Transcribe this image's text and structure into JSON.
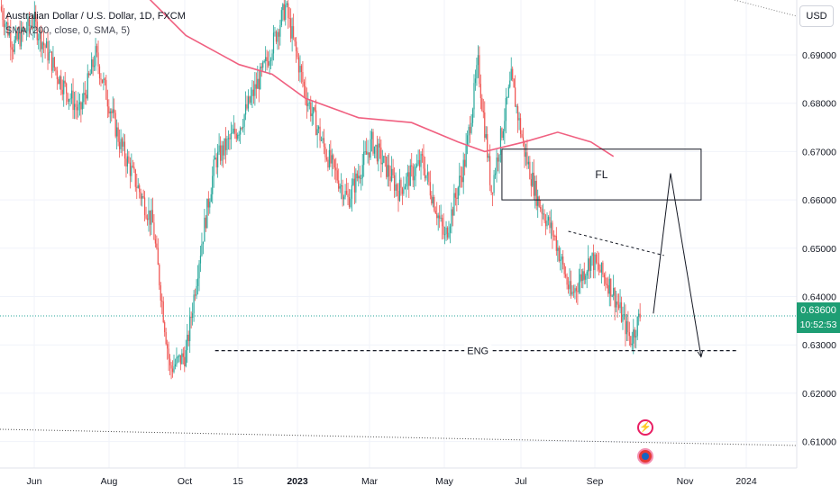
{
  "legend": {
    "symbol_line": "Australian Dollar / U.S. Dollar, 1D, FXCM",
    "indicator_line": "SMA (200, close, 0, SMA, 5)"
  },
  "price_axis": {
    "currency_button": "USD",
    "ticks": [
      "0.69000",
      "0.68000",
      "0.67000",
      "0.66000",
      "0.65000",
      "0.64000",
      "0.63000",
      "0.62000",
      "0.61000"
    ],
    "tick_values": [
      0.69,
      0.68,
      0.67,
      0.66,
      0.65,
      0.64,
      0.63,
      0.62,
      0.61
    ]
  },
  "current_price": {
    "value": "0.63600",
    "countdown": "10:52:53",
    "color": "#1e9e74"
  },
  "time_axis": {
    "labels": [
      "Jun",
      "Aug",
      "Oct",
      "15",
      "2023",
      "Mar",
      "May",
      "Jul",
      "Sep",
      "Nov",
      "2024"
    ]
  },
  "annotations": {
    "zone_label": "FL",
    "level_label": "ENG"
  },
  "colors": {
    "up": "#26a69a",
    "down": "#ef5350",
    "sma": "#f06080",
    "grid": "#f0f3fa"
  },
  "chart_data": {
    "type": "candlestick",
    "title": "Australian Dollar / U.S. Dollar, 1D, FXCM",
    "ylim": [
      0.604,
      0.702
    ],
    "x_labels": [
      "Jun",
      "Aug",
      "Oct",
      "15",
      "2023",
      "Mar",
      "May",
      "Jul",
      "Sep",
      "Nov",
      "2024"
    ],
    "price_path": [
      {
        "t": 0,
        "v": 0.7
      },
      {
        "t": 10,
        "v": 0.692
      },
      {
        "t": 25,
        "v": 0.697
      },
      {
        "t": 45,
        "v": 0.685
      },
      {
        "t": 60,
        "v": 0.678
      },
      {
        "t": 72,
        "v": 0.69
      },
      {
        "t": 90,
        "v": 0.672
      },
      {
        "t": 115,
        "v": 0.655
      },
      {
        "t": 128,
        "v": 0.625
      },
      {
        "t": 140,
        "v": 0.628
      },
      {
        "t": 150,
        "v": 0.648
      },
      {
        "t": 162,
        "v": 0.668
      },
      {
        "t": 180,
        "v": 0.675
      },
      {
        "t": 200,
        "v": 0.688
      },
      {
        "t": 215,
        "v": 0.7
      },
      {
        "t": 230,
        "v": 0.682
      },
      {
        "t": 245,
        "v": 0.67
      },
      {
        "t": 262,
        "v": 0.66
      },
      {
        "t": 280,
        "v": 0.672
      },
      {
        "t": 300,
        "v": 0.662
      },
      {
        "t": 318,
        "v": 0.668
      },
      {
        "t": 335,
        "v": 0.652
      },
      {
        "t": 350,
        "v": 0.668
      },
      {
        "t": 360,
        "v": 0.688
      },
      {
        "t": 370,
        "v": 0.662
      },
      {
        "t": 385,
        "v": 0.685
      },
      {
        "t": 395,
        "v": 0.67
      },
      {
        "t": 405,
        "v": 0.66
      },
      {
        "t": 418,
        "v": 0.652
      },
      {
        "t": 430,
        "v": 0.64
      },
      {
        "t": 445,
        "v": 0.648
      },
      {
        "t": 460,
        "v": 0.642
      },
      {
        "t": 475,
        "v": 0.631
      },
      {
        "t": 482,
        "v": 0.636
      }
    ],
    "sma_200": [
      {
        "t": 100,
        "v": 0.705
      },
      {
        "t": 140,
        "v": 0.694
      },
      {
        "t": 180,
        "v": 0.688
      },
      {
        "t": 205,
        "v": 0.686
      },
      {
        "t": 230,
        "v": 0.681
      },
      {
        "t": 270,
        "v": 0.677
      },
      {
        "t": 310,
        "v": 0.676
      },
      {
        "t": 345,
        "v": 0.672
      },
      {
        "t": 365,
        "v": 0.67
      },
      {
        "t": 395,
        "v": 0.672
      },
      {
        "t": 420,
        "v": 0.674
      },
      {
        "t": 445,
        "v": 0.672
      },
      {
        "t": 462,
        "v": 0.669
      }
    ],
    "t_max": 600,
    "supply_zone": {
      "label": "FL",
      "t_start": 378,
      "t_end": 528,
      "price_low": 0.66,
      "price_high": 0.6705
    },
    "equal_lows_level": {
      "label": "ENG",
      "t_start": 162,
      "t_end": 555,
      "price": 0.6288
    },
    "dashed_trendline": {
      "t_start": 428,
      "price_start": 0.6535,
      "t_end": 500,
      "price_end": 0.6485
    },
    "projection_path": [
      {
        "t": 492,
        "v": 0.6365
      },
      {
        "t": 505,
        "v": 0.6655
      },
      {
        "t": 528,
        "v": 0.6275
      }
    ],
    "last_price": 0.636
  }
}
